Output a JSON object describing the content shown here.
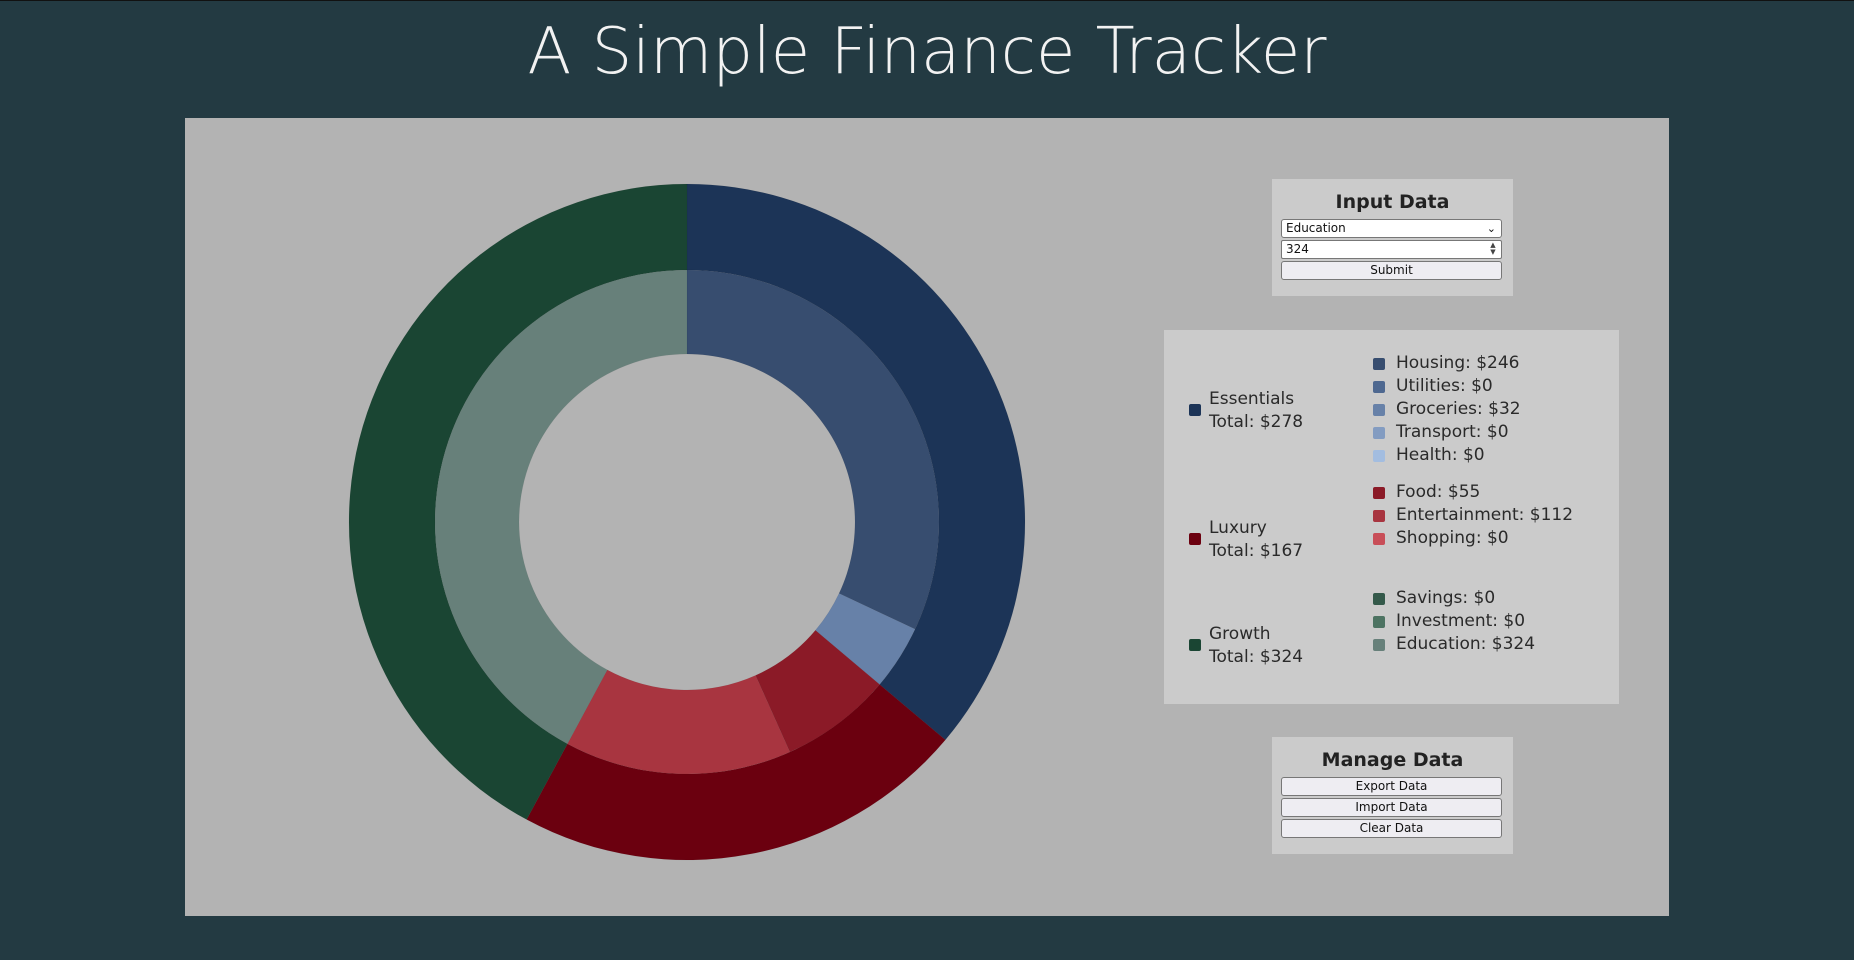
{
  "page": {
    "title": "A Simple Finance Tracker"
  },
  "input": {
    "heading": "Input Data",
    "selected_category": "Education",
    "amount_value": "324",
    "submit_label": "Submit"
  },
  "manage": {
    "heading": "Manage Data",
    "export_label": "Export Data",
    "import_label": "Import Data",
    "clear_label": "Clear Data"
  },
  "legend": {
    "groups": [
      {
        "name": "Essentials",
        "total": "Total: $278",
        "color": "#1c3457",
        "items": [
          {
            "label": "Housing: $246",
            "color": "#374d6f"
          },
          {
            "label": "Utilities: $0",
            "color": "#4e6890"
          },
          {
            "label": "Groceries: $32",
            "color": "#6781a8"
          },
          {
            "label": "Transport: $0",
            "color": "#839cc1"
          },
          {
            "label": "Health: $0",
            "color": "#a3bde0"
          }
        ]
      },
      {
        "name": "Luxury",
        "total": "Total: $167",
        "color": "#6b000f",
        "items": [
          {
            "label": "Food: $55",
            "color": "#8b1a27"
          },
          {
            "label": "Entertainment: $112",
            "color": "#a83540"
          },
          {
            "label": "Shopping: $0",
            "color": "#c84e58"
          }
        ]
      },
      {
        "name": "Growth",
        "total": "Total: $324",
        "color": "#1a4533",
        "items": [
          {
            "label": "Savings: $0",
            "color": "#34594a"
          },
          {
            "label": "Investment: $0",
            "color": "#4d7362"
          },
          {
            "label": "Education: $324",
            "color": "#67807a"
          }
        ]
      }
    ]
  },
  "chart_data": {
    "type": "pie",
    "outer": [
      {
        "name": "Essentials",
        "value": 278,
        "color": "#1c3457"
      },
      {
        "name": "Luxury",
        "value": 167,
        "color": "#6b000f"
      },
      {
        "name": "Growth",
        "value": 324,
        "color": "#1a4533"
      }
    ],
    "inner": [
      {
        "name": "Housing",
        "value": 246,
        "color": "#374d6f"
      },
      {
        "name": "Utilities",
        "value": 0,
        "color": "#4e6890"
      },
      {
        "name": "Groceries",
        "value": 32,
        "color": "#6781a8"
      },
      {
        "name": "Transport",
        "value": 0,
        "color": "#839cc1"
      },
      {
        "name": "Health",
        "value": 0,
        "color": "#a3bde0"
      },
      {
        "name": "Food",
        "value": 55,
        "color": "#8b1a27"
      },
      {
        "name": "Entertainment",
        "value": 112,
        "color": "#a83540"
      },
      {
        "name": "Shopping",
        "value": 0,
        "color": "#c84e58"
      },
      {
        "name": "Savings",
        "value": 0,
        "color": "#34594a"
      },
      {
        "name": "Investment",
        "value": 0,
        "color": "#4d7362"
      },
      {
        "name": "Education",
        "value": 324,
        "color": "#67807a"
      }
    ]
  }
}
